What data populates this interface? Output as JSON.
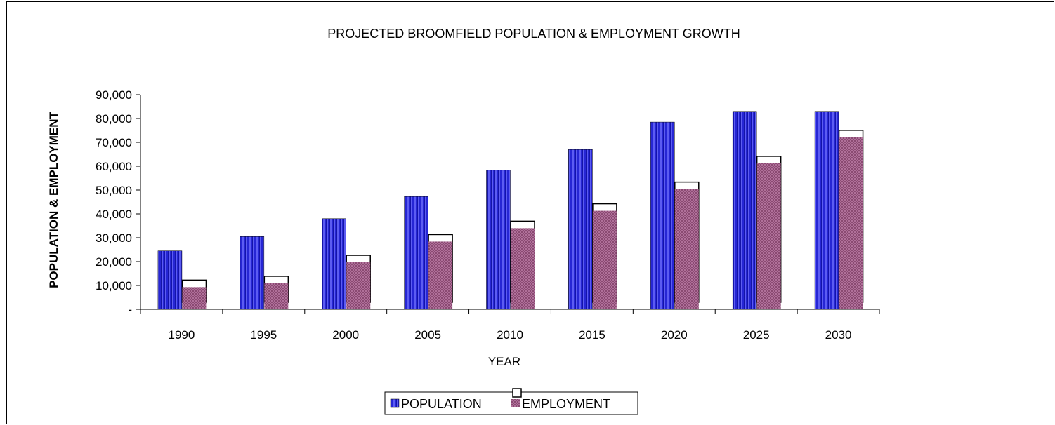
{
  "chart_data": {
    "type": "bar",
    "title": "PROJECTED BROOMFIELD POPULATION & EMPLOYMENT GROWTH",
    "xlabel": "YEAR",
    "ylabel": "POPULATION & EMPLOYMENT",
    "categories": [
      "1990",
      "1995",
      "2000",
      "2005",
      "2010",
      "2015",
      "2020",
      "2025",
      "2030"
    ],
    "y_ticks": [
      "-",
      "10,000",
      "20,000",
      "30,000",
      "40,000",
      "50,000",
      "60,000",
      "70,000",
      "80,000",
      "90,000"
    ],
    "ylim": [
      0,
      90000
    ],
    "grid": false,
    "legend_position": "bottom",
    "series": [
      {
        "name": "POPULATION",
        "color": "#2a2ad8",
        "values": [
          24500,
          30500,
          38000,
          47300,
          58300,
          67000,
          78500,
          83000,
          83000
        ]
      },
      {
        "name": "EMPLOYMENT",
        "color": "#a05a85",
        "values": [
          9300,
          10900,
          19700,
          28400,
          34000,
          41300,
          50400,
          61200,
          72100
        ]
      }
    ]
  }
}
